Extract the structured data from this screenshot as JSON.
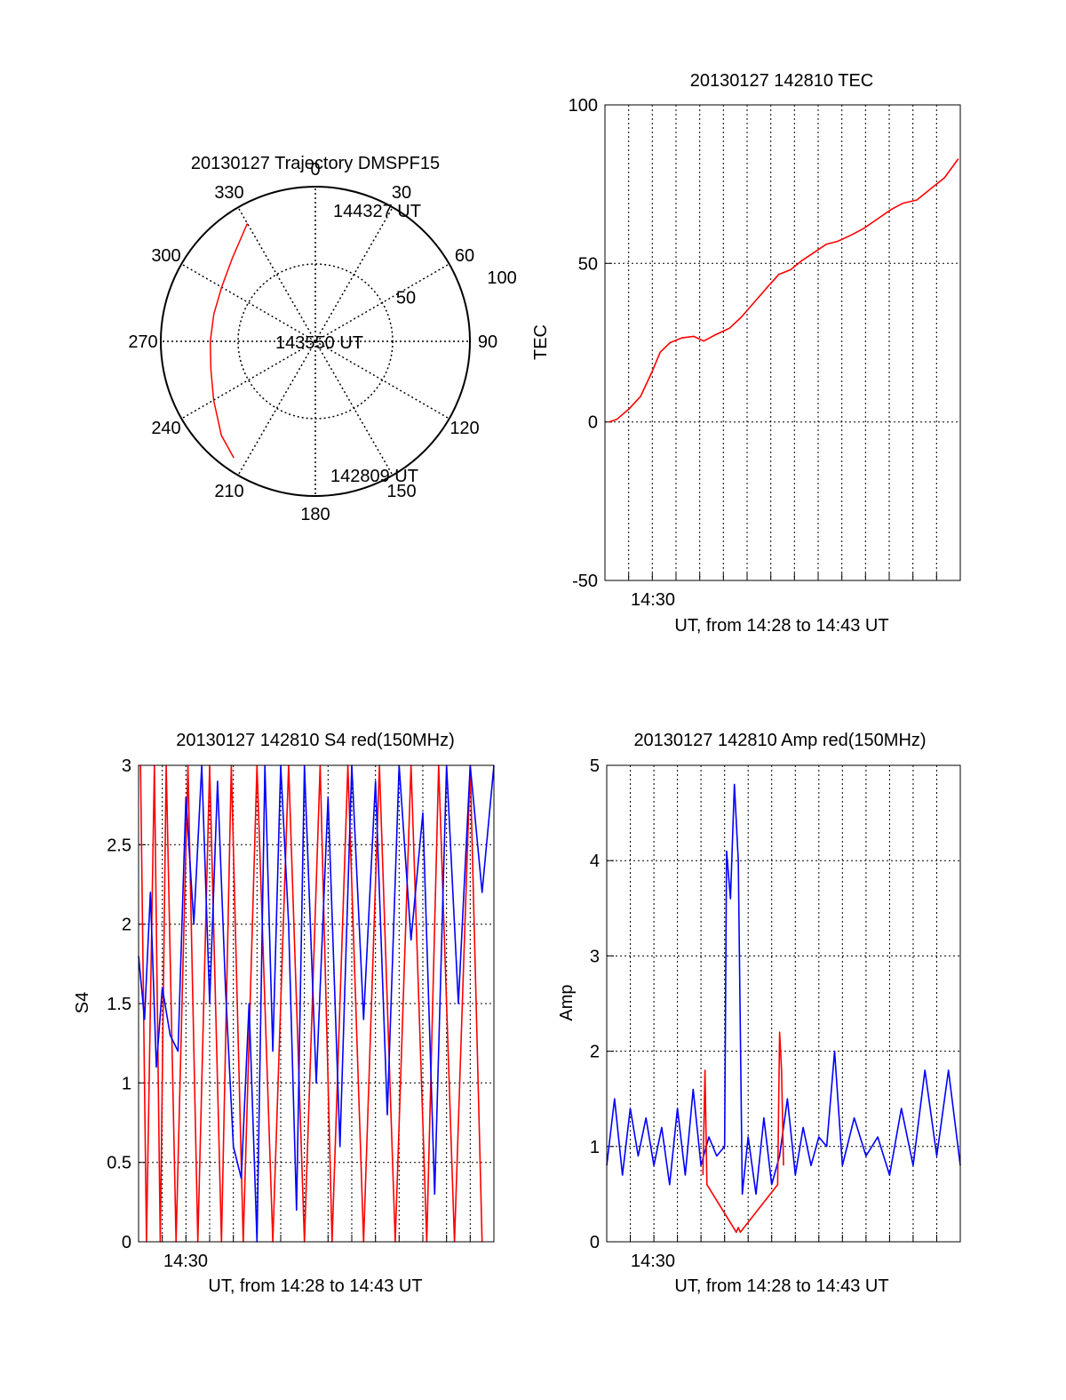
{
  "colors": {
    "red": "#ff0000",
    "blue": "#0000ff",
    "axis": "#000000",
    "grid": "#000000",
    "background": "#ffffff"
  },
  "chart_data": [
    {
      "id": "trajectory",
      "type": "polar",
      "title": "20130127 Trajectory DMSPF15",
      "angle_labels": [
        "0",
        "30",
        "60",
        "90",
        "120",
        "150",
        "180",
        "210",
        "240",
        "270",
        "300",
        "330"
      ],
      "radial_labels": [
        "50",
        "100"
      ],
      "r_max": 100,
      "grid": true,
      "series": [
        {
          "color": "#ff0000",
          "points": [
            [
              330,
              88
            ],
            [
              315,
              76
            ],
            [
              300,
              70
            ],
            [
              285,
              68
            ],
            [
              270,
              68
            ],
            [
              255,
              70
            ],
            [
              240,
              76
            ],
            [
              225,
              86
            ],
            [
              215,
              92
            ]
          ]
        }
      ],
      "annotations": [
        "144327 UT",
        "143550 UT",
        "142809 UT"
      ]
    },
    {
      "id": "tec",
      "type": "line",
      "title": "20130127 142810 TEC",
      "xlabel": "UT, from 14:28 to 14:43 UT",
      "ylabel": "TEC",
      "x_tick_label": "14:30",
      "y_ticks": [
        "100",
        "50",
        "0",
        "-50"
      ],
      "ylim": [
        -50,
        100
      ],
      "xlim": [
        "14:28",
        "14:43"
      ],
      "grid": true,
      "series": [
        {
          "color": "#ff0000",
          "x": [
            "14:28:10",
            "14:28:30",
            "14:29:00",
            "14:29:30",
            "14:30:00",
            "14:30:20",
            "14:30:45",
            "14:31:15",
            "14:31:45",
            "14:32:10",
            "14:32:40",
            "14:33:15",
            "14:33:45",
            "14:34:20",
            "14:34:55",
            "14:35:20",
            "14:35:50",
            "14:36:20",
            "14:36:50",
            "14:37:20",
            "14:37:50",
            "14:38:25",
            "14:38:55",
            "14:39:30",
            "14:40:05",
            "14:40:35",
            "14:41:10",
            "14:41:40",
            "14:42:20",
            "14:42:55"
          ],
          "values": [
            0,
            0.8,
            4,
            8,
            16,
            22,
            25,
            26.5,
            27,
            25.5,
            27.5,
            29.5,
            33,
            38,
            43,
            46.5,
            48,
            51,
            53.5,
            56,
            57,
            59,
            61,
            64,
            67,
            69,
            70,
            73,
            77,
            83
          ]
        }
      ]
    },
    {
      "id": "s4",
      "type": "line",
      "title": "20130127 142810 S4 red(150MHz)",
      "xlabel": "UT, from 14:28 to 14:43 UT",
      "ylabel": "S4",
      "x_tick_label": "14:30",
      "y_ticks": [
        "3",
        "2.5",
        "2",
        "1.5",
        "1",
        "0.5",
        "0"
      ],
      "ylim": [
        0,
        3
      ],
      "xlim": [
        "14:28",
        "14:43"
      ],
      "grid": true,
      "series": [
        {
          "color": "#ff0000",
          "x": [
            "14:28:05",
            "14:28:20",
            "14:28:40",
            "14:28:55",
            "14:29:10",
            "14:29:35",
            "14:30:05",
            "14:30:30",
            "14:31:00",
            "14:31:30",
            "14:31:55",
            "14:32:25",
            "14:33:00",
            "14:33:40",
            "14:34:20",
            "14:35:00",
            "14:35:40",
            "14:36:10",
            "14:36:50",
            "14:37:30",
            "14:38:10",
            "14:38:50",
            "14:39:30",
            "14:40:10",
            "14:40:40",
            "14:41:20",
            "14:42:00",
            "14:42:30"
          ],
          "values": [
            3,
            0,
            3,
            0,
            3,
            0,
            3,
            0,
            3,
            0,
            3,
            0,
            3,
            0,
            3,
            0,
            3,
            0,
            3,
            0,
            3,
            0,
            3,
            0,
            3,
            0,
            3,
            0
          ]
        },
        {
          "color": "#0000ff",
          "x": [
            "14:28:00",
            "14:28:15",
            "14:28:30",
            "14:28:45",
            "14:29:00",
            "14:29:20",
            "14:29:40",
            "14:30:00",
            "14:30:20",
            "14:30:40",
            "14:31:00",
            "14:31:20",
            "14:31:40",
            "14:32:00",
            "14:32:20",
            "14:32:40",
            "14:33:00",
            "14:33:20",
            "14:33:40",
            "14:34:00",
            "14:34:20",
            "14:34:40",
            "14:35:00",
            "14:35:30",
            "14:36:00",
            "14:36:30",
            "14:37:00",
            "14:37:30",
            "14:38:00",
            "14:38:30",
            "14:39:00",
            "14:39:30",
            "14:40:00",
            "14:40:30",
            "14:41:00",
            "14:41:30",
            "14:42:00",
            "14:42:30",
            "14:43:00"
          ],
          "values": [
            1.8,
            1.4,
            2.2,
            1.1,
            1.6,
            1.3,
            1.2,
            2.8,
            2.0,
            3.0,
            1.5,
            2.9,
            1.6,
            0.6,
            0.4,
            1.5,
            0.0,
            3.0,
            1.2,
            3.0,
            2.0,
            0.2,
            3.0,
            1.0,
            2.8,
            0.6,
            3.0,
            1.4,
            2.9,
            0.8,
            3.0,
            1.9,
            2.7,
            0.3,
            3.0,
            1.5,
            3.0,
            2.2,
            3.0
          ]
        }
      ]
    },
    {
      "id": "amp",
      "type": "line",
      "title": "20130127 142810 Amp red(150MHz)",
      "xlabel": "UT, from 14:28 to 14:43 UT",
      "ylabel": "Amp",
      "x_tick_label": "14:30",
      "y_ticks": [
        "5",
        "4",
        "3",
        "2",
        "1",
        "0"
      ],
      "ylim": [
        0,
        5
      ],
      "xlim": [
        "14:28",
        "14:43"
      ],
      "grid": true,
      "series": [
        {
          "color": "#0000ff",
          "x": [
            "14:28:00",
            "14:28:20",
            "14:28:40",
            "14:29:00",
            "14:29:20",
            "14:29:40",
            "14:30:00",
            "14:30:20",
            "14:30:40",
            "14:31:00",
            "14:31:20",
            "14:31:40",
            "14:32:00",
            "14:32:20",
            "14:32:40",
            "14:33:00",
            "14:33:05",
            "14:33:15",
            "14:33:25",
            "14:33:35",
            "14:33:45",
            "14:34:00",
            "14:34:20",
            "14:34:40",
            "14:35:00",
            "14:35:20",
            "14:35:40",
            "14:36:00",
            "14:36:20",
            "14:36:40",
            "14:37:00",
            "14:37:20",
            "14:37:40",
            "14:38:00",
            "14:38:30",
            "14:39:00",
            "14:39:30",
            "14:40:00",
            "14:40:30",
            "14:41:00",
            "14:41:30",
            "14:42:00",
            "14:42:30",
            "14:43:00"
          ],
          "values": [
            0.8,
            1.5,
            0.7,
            1.4,
            0.9,
            1.3,
            0.8,
            1.2,
            0.6,
            1.4,
            0.7,
            1.6,
            0.8,
            1.1,
            0.9,
            1.0,
            4.1,
            3.6,
            4.8,
            4.0,
            0.5,
            1.1,
            0.5,
            1.3,
            0.6,
            0.9,
            1.5,
            0.7,
            1.2,
            0.8,
            1.1,
            1.0,
            2.0,
            0.8,
            1.3,
            0.9,
            1.1,
            0.7,
            1.4,
            0.8,
            1.8,
            0.9,
            1.8,
            0.8
          ]
        },
        {
          "color": "#ff0000",
          "x": [
            "14:32:05",
            "14:32:10",
            "14:32:15",
            "14:33:30",
            "14:33:35",
            "14:33:40",
            "14:35:15",
            "14:35:20",
            "14:35:25",
            "14:35:30"
          ],
          "values": [
            0.7,
            1.8,
            0.6,
            0.1,
            0.15,
            0.1,
            0.6,
            2.2,
            1.8,
            0.8
          ]
        }
      ]
    }
  ]
}
